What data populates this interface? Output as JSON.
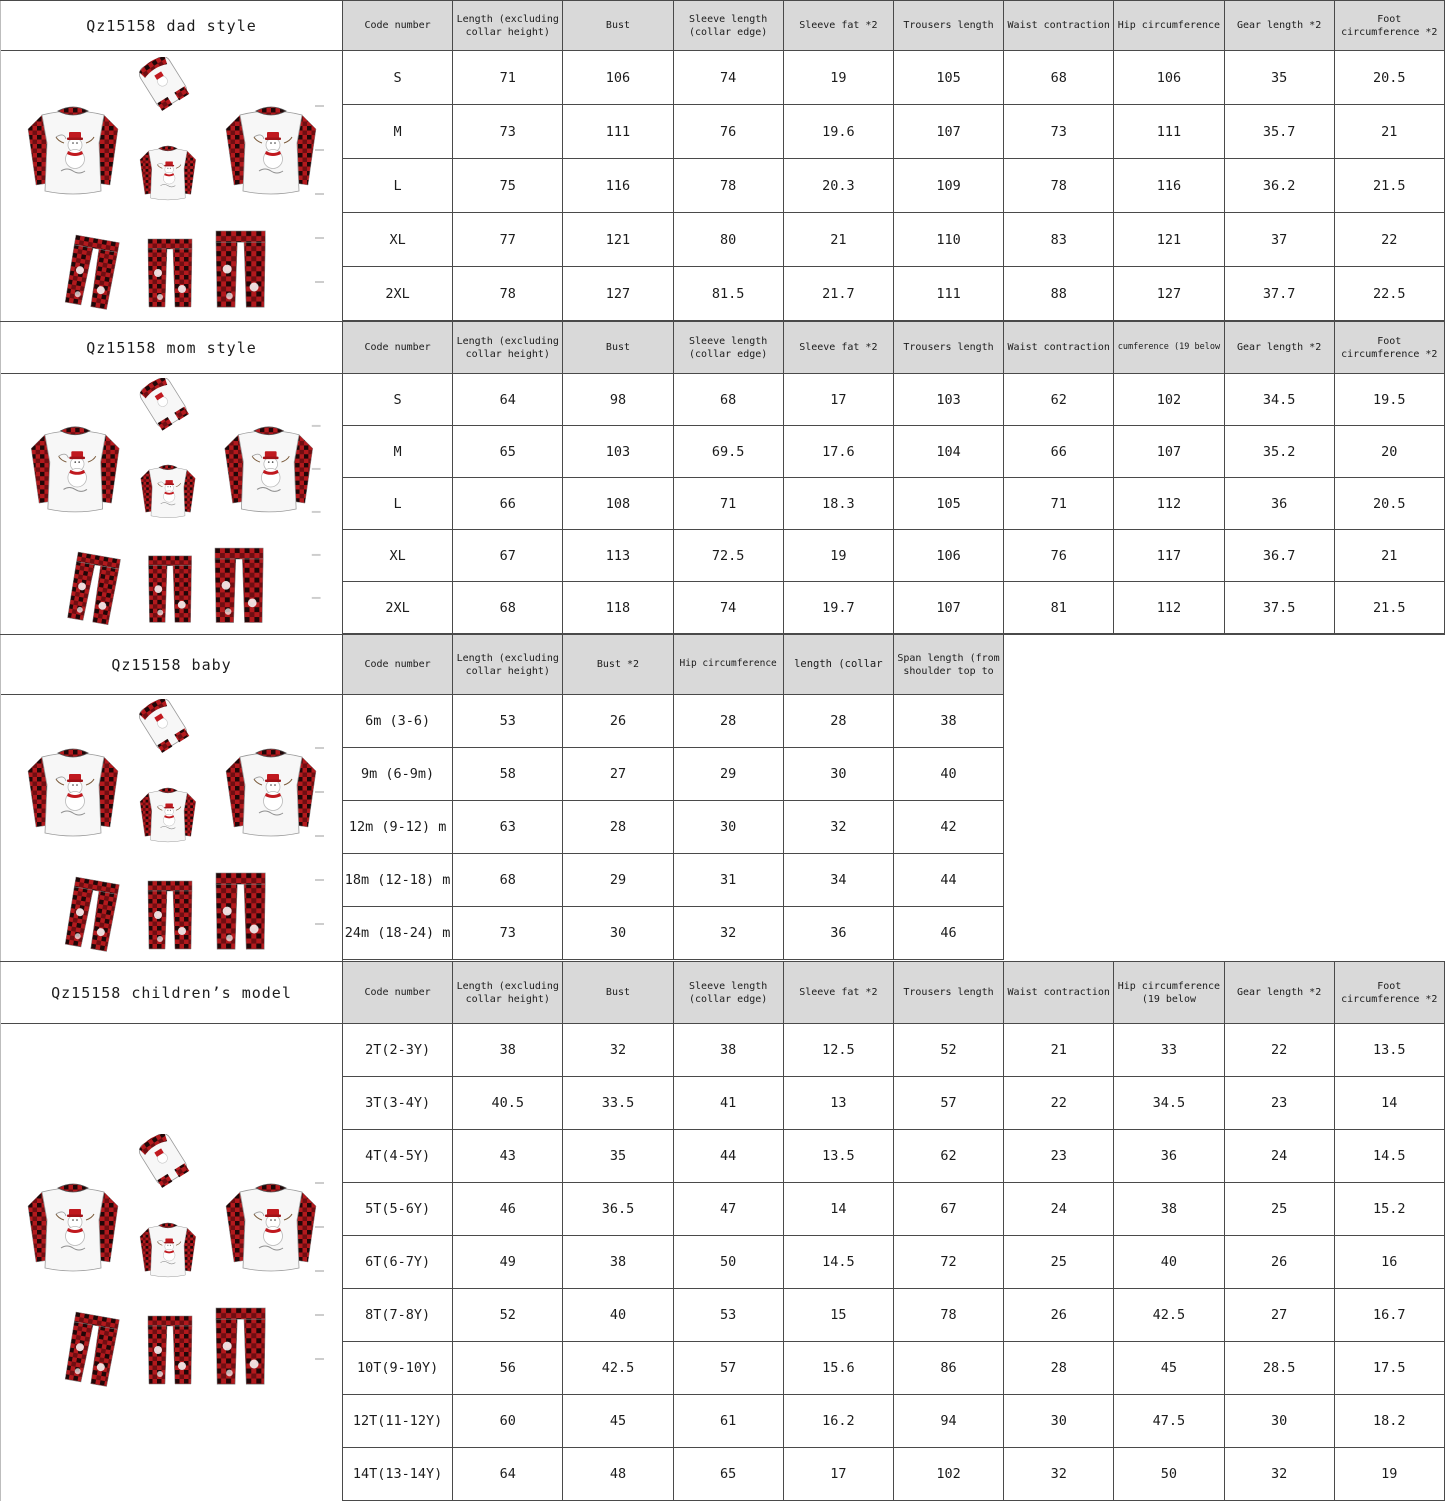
{
  "colors": {
    "header_bg": "#d9d9d9",
    "table_border": "#4a4a4a",
    "plaid_red": "#b3191d",
    "plaid_black": "#200708",
    "plaid_dark_red": "#6f0e12",
    "snowman_hat_red": "#c0191f"
  },
  "sections": [
    {
      "id": "dad",
      "title": "Qz15158 dad style",
      "columns": [
        "Code number",
        "Length (excluding collar height)",
        "Bust",
        "Sleeve length (collar edge)",
        "Sleeve fat *2",
        "Trousers length",
        "Waist contraction",
        "Hip circumference",
        "Gear length *2",
        "Foot circumference *2"
      ],
      "rows": [
        [
          "S",
          "71",
          "106",
          "74",
          "19",
          "105",
          "68",
          "106",
          "35",
          "20.5"
        ],
        [
          "M",
          "73",
          "111",
          "76",
          "19.6",
          "107",
          "73",
          "111",
          "35.7",
          "21"
        ],
        [
          "L",
          "75",
          "116",
          "78",
          "20.3",
          "109",
          "78",
          "116",
          "36.2",
          "21.5"
        ],
        [
          "XL",
          "77",
          "121",
          "80",
          "21",
          "110",
          "83",
          "121",
          "37",
          "22"
        ],
        [
          "2XL",
          "78",
          "127",
          "81.5",
          "21.7",
          "111",
          "88",
          "127",
          "37.7",
          "22.5"
        ]
      ]
    },
    {
      "id": "mom",
      "title": "Qz15158 mom style",
      "columns": [
        "Code number",
        "Length (excluding collar height)",
        "Bust",
        "Sleeve length (collar edge)",
        "Sleeve fat *2",
        "Trousers length",
        "Waist contraction",
        "cumference (19 below",
        "Gear length *2",
        "Foot circumference *2"
      ],
      "rows": [
        [
          "S",
          "64",
          "98",
          "68",
          "17",
          "103",
          "62",
          "102",
          "34.5",
          "19.5"
        ],
        [
          "M",
          "65",
          "103",
          "69.5",
          "17.6",
          "104",
          "66",
          "107",
          "35.2",
          "20"
        ],
        [
          "L",
          "66",
          "108",
          "71",
          "18.3",
          "105",
          "71",
          "112",
          "36",
          "20.5"
        ],
        [
          "XL",
          "67",
          "113",
          "72.5",
          "19",
          "106",
          "76",
          "117",
          "36.7",
          "21"
        ],
        [
          "2XL",
          "68",
          "118",
          "74",
          "19.7",
          "107",
          "81",
          "112",
          "37.5",
          "21.5"
        ]
      ]
    },
    {
      "id": "baby",
      "title": "Qz15158 baby",
      "columns": [
        "Code number",
        "Length (excluding collar height)",
        "Bust *2",
        "Hip circumference",
        "length (collar",
        "Span length (from shoulder top to"
      ],
      "rows": [
        [
          "6m (3-6)",
          "53",
          "26",
          "28",
          "28",
          "38"
        ],
        [
          "9m (6-9m)",
          "58",
          "27",
          "29",
          "30",
          "40"
        ],
        [
          "12m (9-12) m",
          "63",
          "28",
          "30",
          "32",
          "42"
        ],
        [
          "18m (12-18) m",
          "68",
          "29",
          "31",
          "34",
          "44"
        ],
        [
          "24m (18-24) m",
          "73",
          "30",
          "32",
          "36",
          "46"
        ]
      ]
    },
    {
      "id": "children",
      "title": "Qz15158 children’s model",
      "columns": [
        "Code number",
        "Length (excluding collar height)",
        "Bust",
        "Sleeve length (collar edge)",
        "Sleeve fat *2",
        "Trousers length",
        "Waist contraction",
        "Hip circumference (19 below",
        "Gear length *2",
        "Foot circumference *2"
      ],
      "rows": [
        [
          "2T(2-3Y)",
          "38",
          "32",
          "38",
          "12.5",
          "52",
          "21",
          "33",
          "22",
          "13.5"
        ],
        [
          "3T(3-4Y)",
          "40.5",
          "33.5",
          "41",
          "13",
          "57",
          "22",
          "34.5",
          "23",
          "14"
        ],
        [
          "4T(4-5Y)",
          "43",
          "35",
          "44",
          "13.5",
          "62",
          "23",
          "36",
          "24",
          "14.5"
        ],
        [
          "5T(5-6Y)",
          "46",
          "36.5",
          "47",
          "14",
          "67",
          "24",
          "38",
          "25",
          "15.2"
        ],
        [
          "6T(6-7Y)",
          "49",
          "38",
          "50",
          "14.5",
          "72",
          "25",
          "40",
          "26",
          "16"
        ],
        [
          "8T(7-8Y)",
          "52",
          "40",
          "53",
          "15",
          "78",
          "26",
          "42.5",
          "27",
          "16.7"
        ],
        [
          "10T(9-10Y)",
          "56",
          "42.5",
          "57",
          "15.6",
          "86",
          "28",
          "45",
          "28.5",
          "17.5"
        ],
        [
          "12T(11-12Y)",
          "60",
          "45",
          "61",
          "16.2",
          "94",
          "30",
          "47.5",
          "30",
          "18.2"
        ],
        [
          "14T(13-14Y)",
          "64",
          "48",
          "65",
          "17",
          "102",
          "32",
          "50",
          "32",
          "19"
        ]
      ]
    }
  ]
}
